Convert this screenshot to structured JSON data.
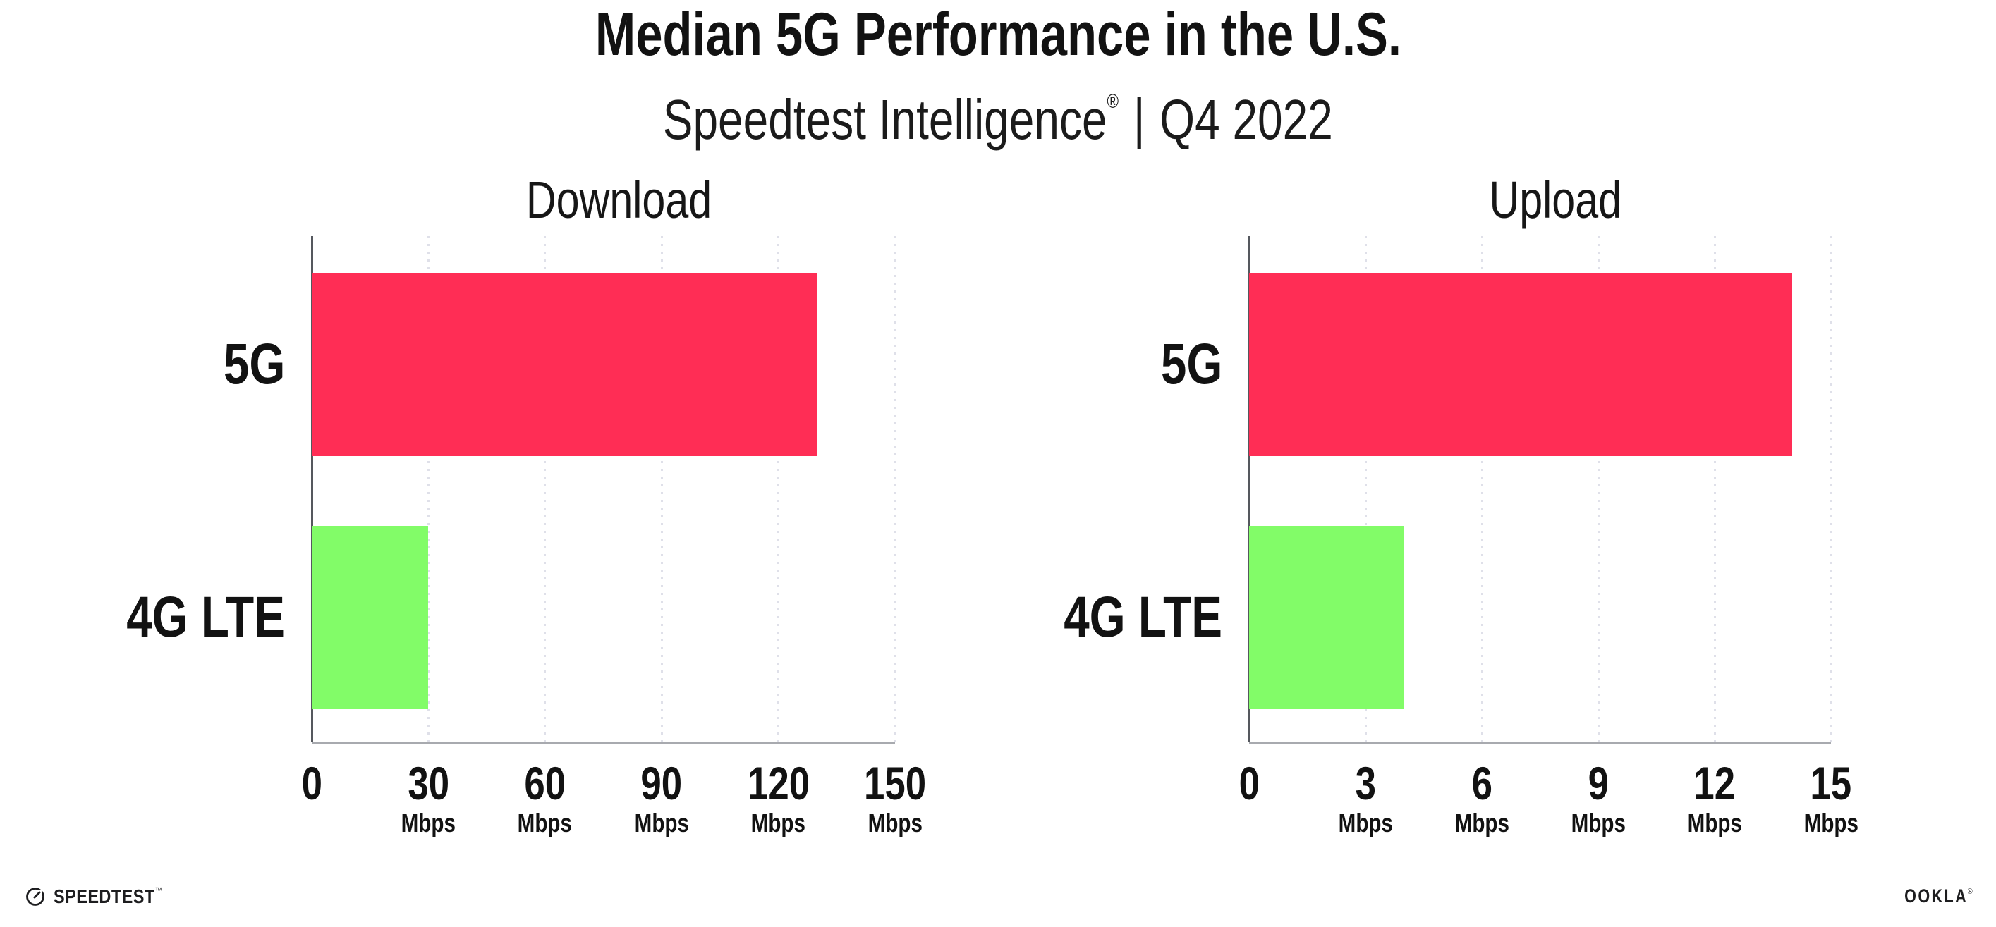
{
  "header": {
    "title": "Median 5G Performance in the U.S.",
    "subtitle_brand": "Speedtest Intelligence",
    "subtitle_reg": "®",
    "subtitle_sep": "|",
    "subtitle_period": "Q4 2022"
  },
  "chart_data": [
    {
      "type": "bar",
      "orientation": "horizontal",
      "title": "Download",
      "categories": [
        "5G",
        "4G LTE"
      ],
      "values": [
        130,
        30
      ],
      "unit": "Mbps",
      "xlim": [
        0,
        150
      ],
      "xticks": [
        0,
        30,
        60,
        90,
        120,
        150
      ],
      "grid": "dotted-vertical",
      "legend": "none"
    },
    {
      "type": "bar",
      "orientation": "horizontal",
      "title": "Upload",
      "categories": [
        "5G",
        "4G LTE"
      ],
      "values": [
        14,
        4
      ],
      "unit": "Mbps",
      "xlim": [
        0,
        15
      ],
      "xticks": [
        0,
        3,
        6,
        9,
        12,
        15
      ],
      "grid": "dotted-vertical",
      "legend": "none"
    }
  ],
  "colors": {
    "series": [
      "#FF2D55",
      "#82FC68"
    ],
    "grid": "#DFE0E9",
    "axis_left": "#55585E",
    "axis_bottom": "#A8AAAF",
    "text": "#121212"
  },
  "footer": {
    "speedtest_label": "SPEEDTEST",
    "speedtest_mark": "™",
    "ookla_label": "OOKLA",
    "ookla_mark": "®"
  }
}
